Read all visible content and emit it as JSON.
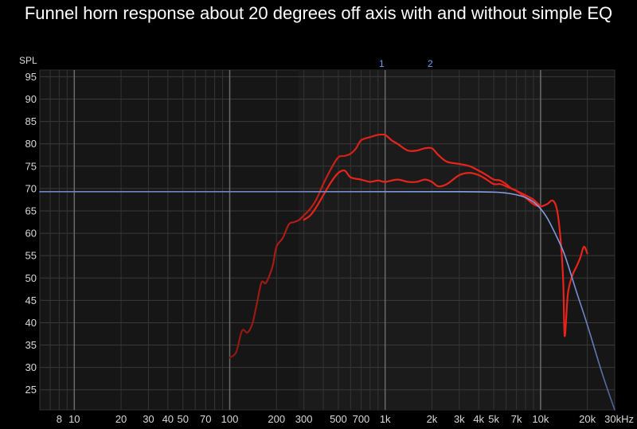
{
  "chart_data": {
    "type": "line",
    "title": "Funnel horn response about 20 degrees off axis with and without simple EQ",
    "ylabel": "SPL",
    "xlabel": "",
    "x_scale": "log",
    "xlim": [
      6,
      30000
    ],
    "ylim": [
      20.5,
      96.5
    ],
    "grid": true,
    "y_ticks": [
      95,
      90,
      85,
      80,
      75,
      70,
      65,
      60,
      55,
      50,
      45,
      40,
      35,
      30,
      25
    ],
    "x_ticks": [
      {
        "value": 8,
        "label": "8"
      },
      {
        "value": 10,
        "label": "10"
      },
      {
        "value": 20,
        "label": "20"
      },
      {
        "value": 30,
        "label": "30"
      },
      {
        "value": 40,
        "label": "40"
      },
      {
        "value": 50,
        "label": "50"
      },
      {
        "value": 70,
        "label": "70"
      },
      {
        "value": 100,
        "label": "100"
      },
      {
        "value": 200,
        "label": "200"
      },
      {
        "value": 300,
        "label": "300"
      },
      {
        "value": 500,
        "label": "500"
      },
      {
        "value": 700,
        "label": "700"
      },
      {
        "value": 1000,
        "label": "1k"
      },
      {
        "value": 2000,
        "label": "2k"
      },
      {
        "value": 3000,
        "label": "3k"
      },
      {
        "value": 4000,
        "label": "4k"
      },
      {
        "value": 5000,
        "label": "5k"
      },
      {
        "value": 7000,
        "label": "7k"
      },
      {
        "value": 10000,
        "label": "10k"
      },
      {
        "value": 20000,
        "label": "20k"
      },
      {
        "value": 30000,
        "label": "30kHz"
      }
    ],
    "markers": [
      {
        "label": "1",
        "x": 950
      },
      {
        "label": "2",
        "x": 1950
      }
    ],
    "series": [
      {
        "color": "#e8231a",
        "x": [
          100,
          110,
          120,
          130,
          140,
          150,
          160,
          170,
          180,
          190,
          200,
          220,
          240,
          260,
          280,
          300,
          330,
          360,
          400,
          450,
          500,
          550,
          600,
          650,
          700,
          800,
          900,
          1000,
          1100,
          1200,
          1400,
          1600,
          1800,
          2000,
          2200,
          2500,
          3000,
          3500,
          4000,
          4500,
          5000,
          5500,
          6000,
          6500,
          7000,
          8000,
          9000,
          10000,
          11000,
          12000,
          12800,
          13500,
          14000,
          14300,
          15000,
          16000,
          17000,
          18000,
          19000,
          20000
        ],
        "y": [
          32.2,
          33.4,
          38.2,
          37.8,
          39.8,
          44.5,
          49.0,
          48.8,
          50.5,
          53.0,
          57.0,
          59.0,
          62.0,
          62.5,
          63.0,
          64.0,
          65.5,
          67.5,
          71.0,
          74.5,
          77.0,
          77.3,
          77.8,
          79.0,
          80.8,
          81.5,
          82.0,
          82.0,
          80.8,
          80.0,
          78.5,
          78.5,
          79.0,
          79.0,
          77.5,
          76.0,
          75.5,
          75.0,
          74.0,
          73.0,
          72.0,
          71.8,
          71.0,
          70.0,
          69.5,
          68.0,
          66.5,
          66.0,
          66.5,
          67.3,
          65.0,
          58.0,
          49.0,
          37.0,
          46.5,
          50.5,
          52.5,
          54.5,
          57.0,
          55.5
        ]
      },
      {
        "color": "#e8231a",
        "x": [
          300,
          330,
          360,
          400,
          450,
          500,
          550,
          600,
          700,
          800,
          900,
          1000,
          1200,
          1400,
          1600,
          1800,
          2000,
          2200,
          2500,
          3000,
          3500,
          4000,
          4500,
          5000,
          5500,
          6000,
          7000,
          8000,
          9000,
          10000
        ],
        "y": [
          63.0,
          64.0,
          65.8,
          68.5,
          71.5,
          73.5,
          74.0,
          72.5,
          72.0,
          71.5,
          71.8,
          71.5,
          72.0,
          71.5,
          71.5,
          72.0,
          71.5,
          70.5,
          71.0,
          73.0,
          73.5,
          73.0,
          72.0,
          71.0,
          71.0,
          70.5,
          69.5,
          68.5,
          67.5,
          66.0
        ]
      },
      {
        "color": "#7f99dd",
        "x": [
          6,
          100,
          200,
          300,
          500,
          1000,
          2000,
          3000,
          5000,
          6000,
          7000,
          8000,
          9000,
          10000,
          11000,
          12000,
          13000,
          14000,
          15000,
          17000,
          20000,
          25000,
          30000
        ],
        "y": [
          69.3,
          69.3,
          69.3,
          69.3,
          69.3,
          69.3,
          69.3,
          69.3,
          69.2,
          69.0,
          68.6,
          68.0,
          67.0,
          65.5,
          63.5,
          61.0,
          58.5,
          56.0,
          53.0,
          47.0,
          39.5,
          28.5,
          20.5
        ]
      }
    ]
  }
}
